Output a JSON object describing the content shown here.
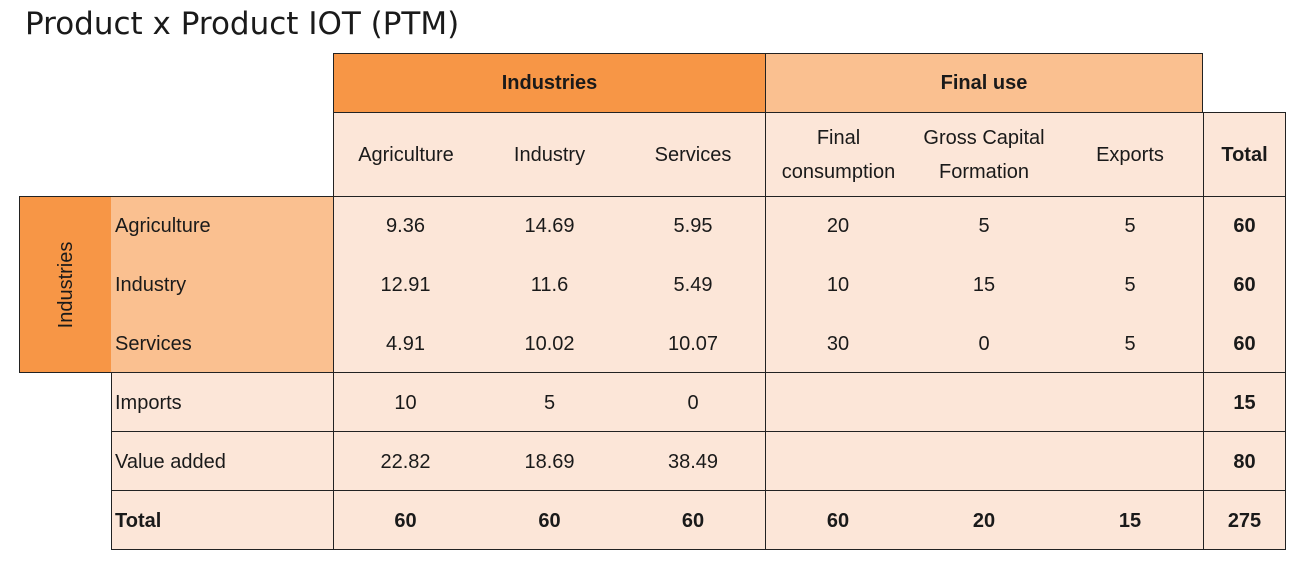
{
  "title": "Product x Product IOT (PTM)",
  "colors": {
    "header_orange": "#f79646",
    "header_light_orange": "#fac090",
    "cell_peach": "#fce6d8"
  },
  "header": {
    "group_industries": "Industries",
    "group_final_use": "Final use",
    "columns": [
      "Agriculture",
      "Industry",
      "Services",
      "Final consumption",
      "Gross Capital Formation",
      "Exports",
      "Total"
    ],
    "final_consumption_line1": "Final",
    "final_consumption_line2": "consumption",
    "gcf_line1": "Gross Capital",
    "gcf_line2": "Formation"
  },
  "row_group_label": "Industries",
  "rows": [
    {
      "label": "Agriculture",
      "values": [
        "9.36",
        "14.69",
        "5.95",
        "20",
        "5",
        "5",
        "60"
      ]
    },
    {
      "label": "Industry",
      "values": [
        "12.91",
        "11.6",
        "5.49",
        "10",
        "15",
        "5",
        "60"
      ]
    },
    {
      "label": "Services",
      "values": [
        "4.91",
        "10.02",
        "10.07",
        "30",
        "0",
        "5",
        "60"
      ]
    },
    {
      "label": "Imports",
      "values": [
        "10",
        "5",
        "0",
        "",
        "",
        "",
        "15"
      ]
    },
    {
      "label": "Value added",
      "values": [
        "22.82",
        "18.69",
        "38.49",
        "",
        "",
        "",
        "80"
      ]
    },
    {
      "label": "Total",
      "values": [
        "60",
        "60",
        "60",
        "60",
        "20",
        "15",
        "275"
      ]
    }
  ]
}
